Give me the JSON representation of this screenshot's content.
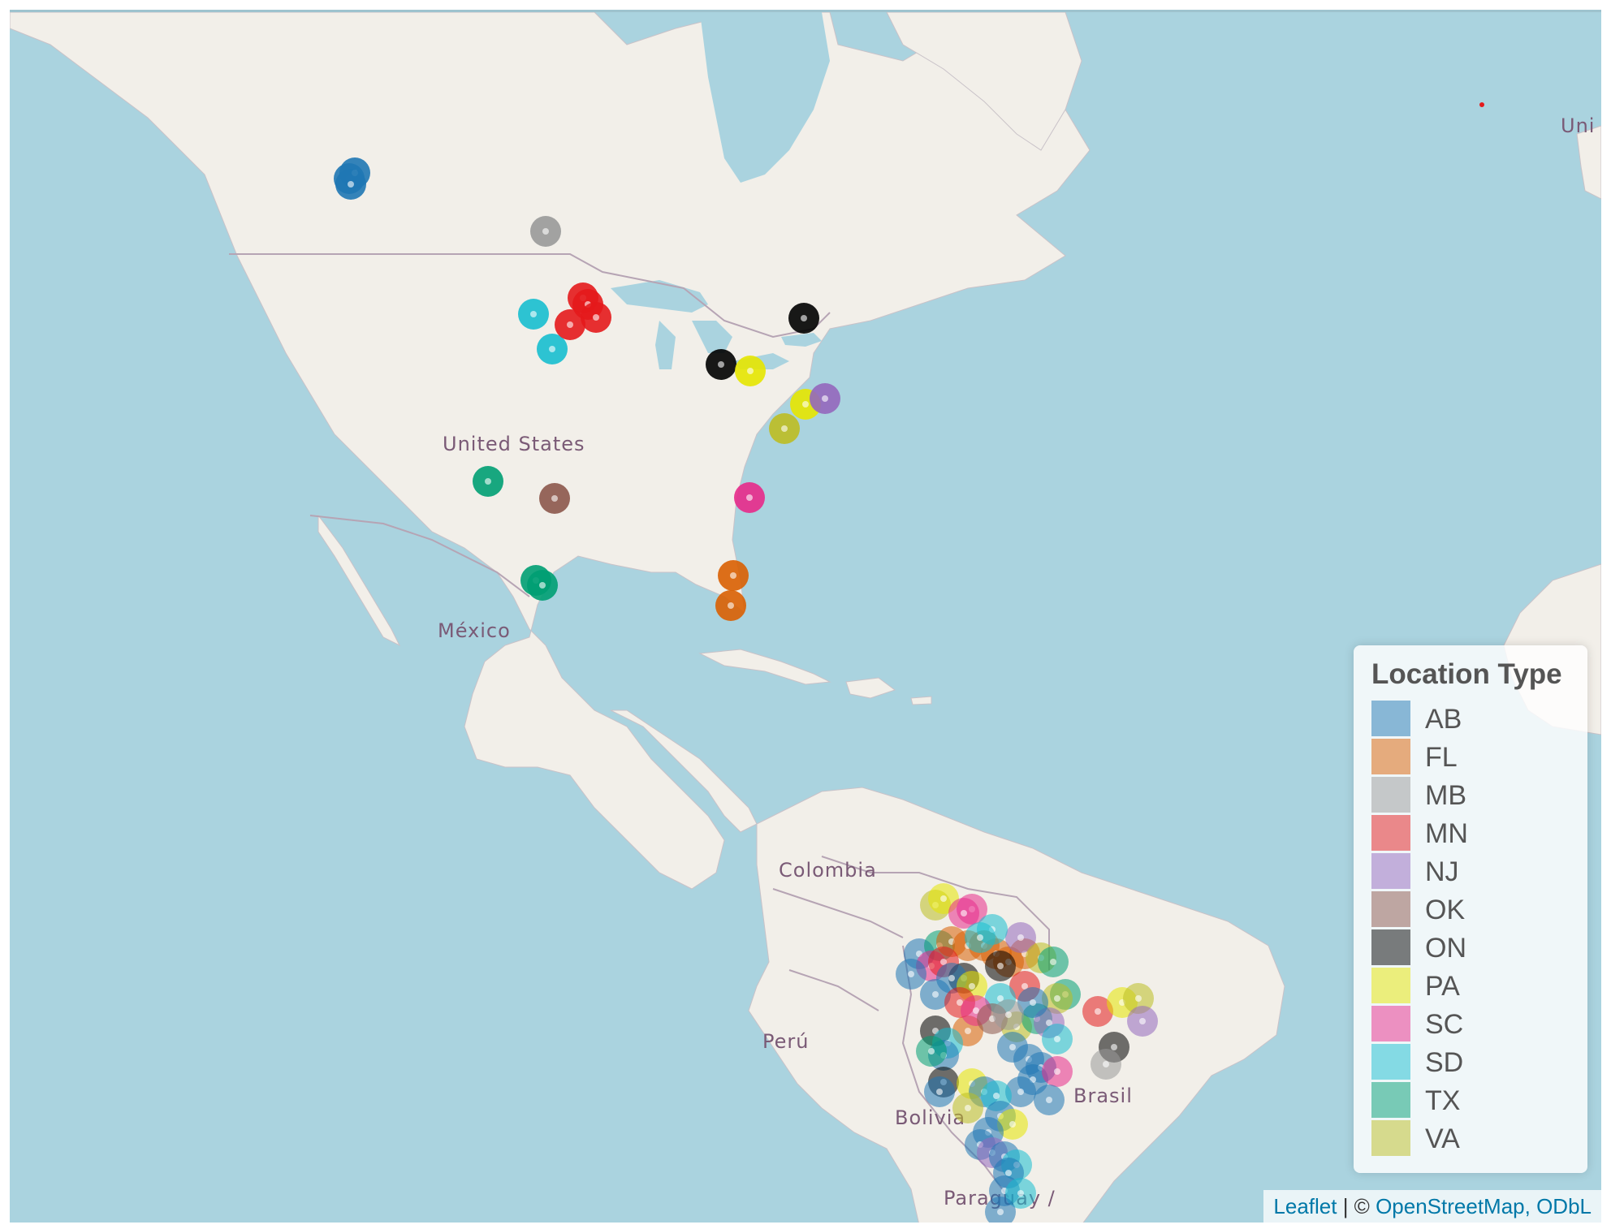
{
  "map": {
    "ocean_color": "#aad3df",
    "land_color": "#f2efe9",
    "labels": {
      "united_states": "United States",
      "mexico": "México",
      "colombia": "Colombia",
      "peru": "Perú",
      "bolivia": "Bolivia",
      "brasil": "Brasil",
      "paraguay": "Paraguay /",
      "uk_partial": "Uni"
    }
  },
  "legend": {
    "title": "Location Type",
    "items": [
      {
        "label": "AB",
        "color": "#1f77b4"
      },
      {
        "label": "FL",
        "color": "#d95f02"
      },
      {
        "label": "MB",
        "color": "#999999"
      },
      {
        "label": "MN",
        "color": "#e41a1c"
      },
      {
        "label": "NJ",
        "color": "#9467bd"
      },
      {
        "label": "OK",
        "color": "#8c564b"
      },
      {
        "label": "ON",
        "color": "#000000"
      },
      {
        "label": "PA",
        "color": "#e6e600"
      },
      {
        "label": "SC",
        "color": "#e7298a"
      },
      {
        "label": "SD",
        "color": "#17becf"
      },
      {
        "label": "TX",
        "color": "#009e73"
      },
      {
        "label": "VA",
        "color": "#bcbd22"
      }
    ]
  },
  "attribution": {
    "leaflet": "Leaflet",
    "separator": " | © ",
    "osm": "OpenStreetMap, ODbL"
  }
}
